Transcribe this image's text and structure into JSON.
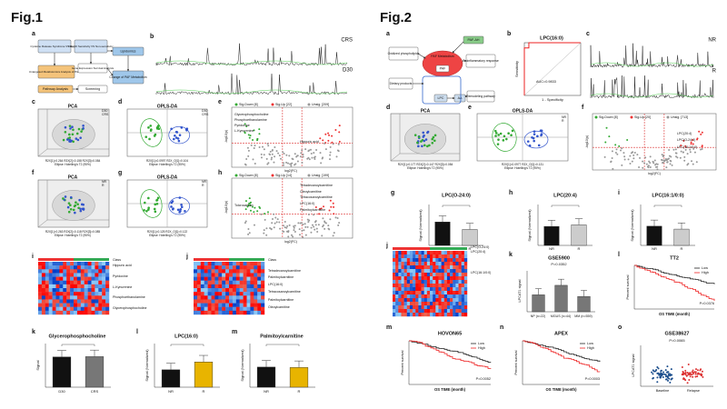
{
  "fig1": {
    "title": "Fig.1",
    "a": {
      "label": "a",
      "boxes": [
        "Cytokine Release Syndrome VS Day 30",
        "Day 30 Sensitivity VS Non-sensitivity",
        "Lipidomics",
        "Untargeted Metabolomics Analysis of Plasma",
        "Gene Expression Survival Analysis",
        "Change of PAF Metabolism",
        "Pathway Analysis",
        "Screening"
      ]
    },
    "b": {
      "label": "b",
      "traces": [
        "CRS",
        "D30"
      ]
    },
    "c": {
      "label": "c",
      "title": "PCA",
      "legend": [
        "D30",
        "CRS"
      ],
      "stats": "R2X[1]=0.264  R2X[2]=0.158  R2X[3]=0.084",
      "ellipse": "Ellipse: Hotelling's T2 (95%)"
    },
    "d": {
      "label": "d",
      "title": "OPLS-DA",
      "legend": [
        "D30",
        "CRS"
      ],
      "stats": "R2X[1]=0.0997  R2X_O[1]=0.104",
      "ellipse": "Ellipse: Hotelling's T2 (95%)"
    },
    "e": {
      "label": "e",
      "legend": [
        "Sig-Down [8]",
        "Sig-Up [22]",
        "Unsig. [209]"
      ],
      "names": [
        "Glycerophosphocholine",
        "Phosphoethanolamine",
        "Pyridoxine",
        "L-Kynurenine",
        "Hippuric acid"
      ],
      "xlabel": "log2(FC)",
      "ylabel": "-log10(p)"
    },
    "f": {
      "label": "f",
      "title": "PCA",
      "legend": [
        "NR",
        "R"
      ],
      "stats": "R2X[1]=0.263  R2X[2]=0.118  R2X[3]=0.085",
      "ellipse": "Ellipse: Hotelling's T2 (95%)"
    },
    "g": {
      "label": "g",
      "title": "OPLS-DA",
      "legend": [
        "NR",
        "R"
      ],
      "stats": "R2X[1]=0.125  R2X_O[1]=0.122",
      "ellipse": "Ellipse: Hotelling's T2 (95%)"
    },
    "h": {
      "label": "h",
      "legend": [
        "Sig-Down [8]",
        "Sig-Up [14]",
        "Unsig. [199]"
      ],
      "names": [
        "Tetradecanoylcarnitine",
        "Oleoylcarnitine",
        "Palmitoylcarnitine",
        "LPC(16:0)",
        "Tetracosanoylcarnitine",
        "Tolcrocarbon"
      ],
      "xlabel": "log2(FC)",
      "ylabel": "-log10(p)"
    },
    "i": {
      "label": "i",
      "class": "Class",
      "rows": [
        "Hippuric acid",
        "Pyridoxine",
        "L-Kynurenine",
        "Phosphoethanolamine",
        "Glycerophosphocholine"
      ]
    },
    "j": {
      "label": "j",
      "class": "Class",
      "rows": [
        "Tetradecanoylcarnitine",
        "Palmitoylcarnitine",
        "LPC(16:0)",
        "Tetracosanoylcarnitine",
        "Palmitoylcarnitine",
        "Oleoylcarnitine"
      ]
    },
    "k": {
      "label": "k",
      "title": "Glycerophosphocholine",
      "ylabel": "Signal",
      "groups": [
        "D30",
        "CRS"
      ]
    },
    "l": {
      "label": "l",
      "title": "LPC(16:0)",
      "ylabel": "Signal (Normalized)",
      "groups": [
        "NR",
        "R"
      ]
    },
    "m": {
      "label": "m",
      "title": "Palmitoylcarnitine",
      "ylabel": "Signal (Normalized)",
      "groups": [
        "NR",
        "R"
      ]
    }
  },
  "fig2": {
    "title": "Fig.2",
    "a": {
      "label": "a",
      "boxes": [
        "Oxidized phospholipids",
        "PAF-AH",
        "PAF Metabolism",
        "PAF",
        "Proinflammatory response",
        "Dietary products",
        "LPC",
        "AA",
        "Remodeling pathway"
      ]
    },
    "b": {
      "label": "b",
      "title": "LPC(16:0)",
      "ylabel": "Sensitivity",
      "xlabel": "1 - Specificity",
      "auc": "AUC=0.9833"
    },
    "c": {
      "label": "c",
      "traces": [
        "NR",
        "R"
      ]
    },
    "d": {
      "label": "d",
      "title": "PCA",
      "stats": "R2X[1]=0.177  R2X[2]=0.147  R2X[3]=0.084",
      "ellipse": "Ellipse: Hotelling's T2 (95%)"
    },
    "e": {
      "label": "e",
      "title": "OPLS-DA",
      "legend": [
        "NR",
        "R"
      ],
      "stats": "R2X[1]=0.0977  R2X_O[1]=0.131",
      "ellipse": "Ellipse: Hotelling's T2 (95%)"
    },
    "f": {
      "label": "f",
      "legend": [
        "Sig-Down [8]",
        "Sig-Up [20]",
        "Unsig. [713]"
      ],
      "names": [
        "LPC(20:4)",
        "LPC(O-24:0)",
        "LPC(16:1/0:0)"
      ],
      "xlabel": "log2(FC)",
      "ylabel": "-log10(p)"
    },
    "g": {
      "label": "g",
      "title": "LPC(O-24:0)",
      "ylabel": "Signal (Normalized)",
      "groups": [
        "NR",
        "R"
      ]
    },
    "h": {
      "label": "h",
      "title": "LPC(20:4)",
      "ylabel": "Signal (Normalized)",
      "groups": [
        "NR",
        "R"
      ]
    },
    "i": {
      "label": "i",
      "title": "LPC(16:1/0:0)",
      "ylabel": "Signal (Normalized)",
      "groups": [
        "NR",
        "R"
      ]
    },
    "j": {
      "label": "j",
      "rows": [
        "LPC(O-24:0)",
        "LPC(20:4)",
        "LPC(16:1/0:0)"
      ]
    },
    "k": {
      "label": "k",
      "title": "GSE5900",
      "p": "P=0.0352",
      "ylabel": "LPCAT1 signal",
      "groups": [
        "NP\n(n=22)",
        "MGUS\n(n=44)",
        "MM\n(n=559)"
      ]
    },
    "l": {
      "label": "l",
      "title": "TT2",
      "legend": [
        "Low",
        "High"
      ],
      "p": "P=0.0376",
      "xlabel": "OS TIME (month)",
      "ylabel": "Percent survival"
    },
    "m": {
      "label": "m",
      "title": "HOVON65",
      "legend": [
        "Low",
        "High"
      ],
      "p": "P=0.0052",
      "xlabel": "OS TIME (month)",
      "ylabel": "Percent survival"
    },
    "n": {
      "label": "n",
      "title": "APEX",
      "legend": [
        "Low",
        "High"
      ],
      "p": "P=0.0003",
      "xlabel": "OS TIME (month)",
      "ylabel": "Percent survival"
    },
    "o": {
      "label": "o",
      "title": "GSE38627",
      "p": "P=0.0065",
      "ylabel": "LPCAT1 signal",
      "groups": [
        "Baseline",
        "Relapse"
      ]
    }
  }
}
